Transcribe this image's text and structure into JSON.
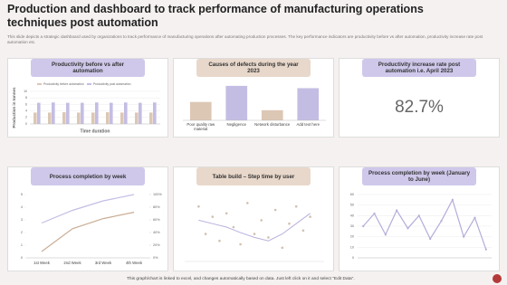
{
  "title": "Production and dashboard to track performance of manufacturing operations techniques post automation",
  "subtitle": "This slide depicts a strategic dashboard used by organizations to track performance of manufacturing operations after automating production processes. The key performance indicators are productivity before vs after automation, productivity increase rate post automation etc.",
  "chart_data": [
    {
      "type": "bar",
      "title": "Productivity before vs after automation",
      "categories": [
        null,
        null,
        null,
        null,
        null,
        null,
        null,
        null,
        null
      ],
      "series": [
        {
          "name": "Productivity before automation",
          "color": "#dcc7b5",
          "values": [
            3.5,
            3.5,
            3.6,
            3.5,
            3.5,
            3.6,
            3.5,
            3.5,
            3.5
          ]
        },
        {
          "name": "Productivity post automation",
          "color": "#c4bde3",
          "values": [
            6.5,
            6.6,
            6.5,
            6.5,
            6.6,
            6.5,
            6.6,
            6.5,
            6.6
          ]
        }
      ],
      "ylim": [
        0,
        10
      ],
      "yticks": [
        0,
        2,
        4,
        6,
        8,
        10
      ],
      "grid": true,
      "x_label": "Time duration",
      "y_label": "Production in tonnes"
    },
    {
      "type": "bar",
      "title": "Causes of defects during the year 2023",
      "categories": [
        "Poor quality raw material",
        "Negligence",
        "Network disturbance",
        "Add text here"
      ],
      "values": [
        40,
        75,
        22,
        70
      ],
      "colors": [
        "#dcc7b5",
        "#c4bde3",
        "#dcc7b5",
        "#c4bde3"
      ]
    },
    {
      "type": "kpi",
      "title": "Productivity increase rate post automation i.e. April 2023",
      "values": [
        82.7
      ],
      "value_labels": [
        "82.7%"
      ]
    },
    {
      "type": "line",
      "title": "Process completion by week",
      "categories": [
        "1st Week",
        "2nd Week",
        "3rd Week",
        "4th Week"
      ],
      "series": [
        {
          "color": "#c9ad96",
          "values": [
            0.5,
            2.3,
            3.1,
            3.6
          ]
        },
        {
          "color": "#c4bde3",
          "axis": "y2",
          "values": [
            55,
            75,
            90,
            100
          ]
        }
      ],
      "ylim": [
        0,
        5
      ],
      "yticks": [
        0,
        1,
        2,
        3,
        4,
        5
      ],
      "y2lim": [
        0,
        100
      ],
      "y2ticks": [
        {
          "value": 0,
          "label": "0%"
        },
        {
          "value": 20,
          "label": "20%"
        },
        {
          "value": 40,
          "label": "40%"
        },
        {
          "value": 60,
          "label": "60%"
        },
        {
          "value": 80,
          "label": "80%"
        },
        {
          "value": 100,
          "label": "100%"
        }
      ],
      "grid": false
    },
    {
      "type": "scatter",
      "title": "Table build – Step time by user",
      "series": [
        {
          "color": "#d3bfae",
          "x": [
            1,
            1.5,
            2,
            2.5,
            3,
            3.5,
            4,
            4.5,
            5,
            5.5,
            6,
            6.5,
            7,
            7.5,
            8,
            8.5,
            9
          ],
          "values": [
            8,
            4,
            6.5,
            3,
            7,
            5,
            2.5,
            8.5,
            4,
            6,
            3.5,
            7.5,
            2,
            5.5,
            8,
            4.5,
            6.5
          ]
        },
        {
          "type": "line",
          "color": "#b9b0dd",
          "x": [
            1,
            2,
            3,
            4,
            5,
            6,
            7,
            8,
            9
          ],
          "values": [
            6,
            5.5,
            5,
            4.2,
            3.5,
            3,
            4,
            5.5,
            7
          ]
        }
      ],
      "xlim": [
        0,
        10
      ],
      "ylim": [
        0,
        10
      ]
    },
    {
      "type": "line",
      "title": "Process completion by week (January to June)",
      "categories": [
        null,
        null,
        null,
        null,
        null,
        null,
        null,
        null,
        null,
        null,
        null,
        null
      ],
      "series": [
        {
          "color": "#b6acd9",
          "values": [
            30,
            42,
            22,
            45,
            28,
            40,
            18,
            35,
            55,
            20,
            38,
            8
          ]
        }
      ],
      "ylim": [
        0,
        60
      ],
      "yticks": [
        0,
        10,
        20,
        30,
        40,
        50,
        60
      ],
      "grid": true,
      "markers": true
    }
  ],
  "footer": "This graph/chart is linked to excel, and changes automatically based on data. Just left click on it and select \"Edit Data\"."
}
